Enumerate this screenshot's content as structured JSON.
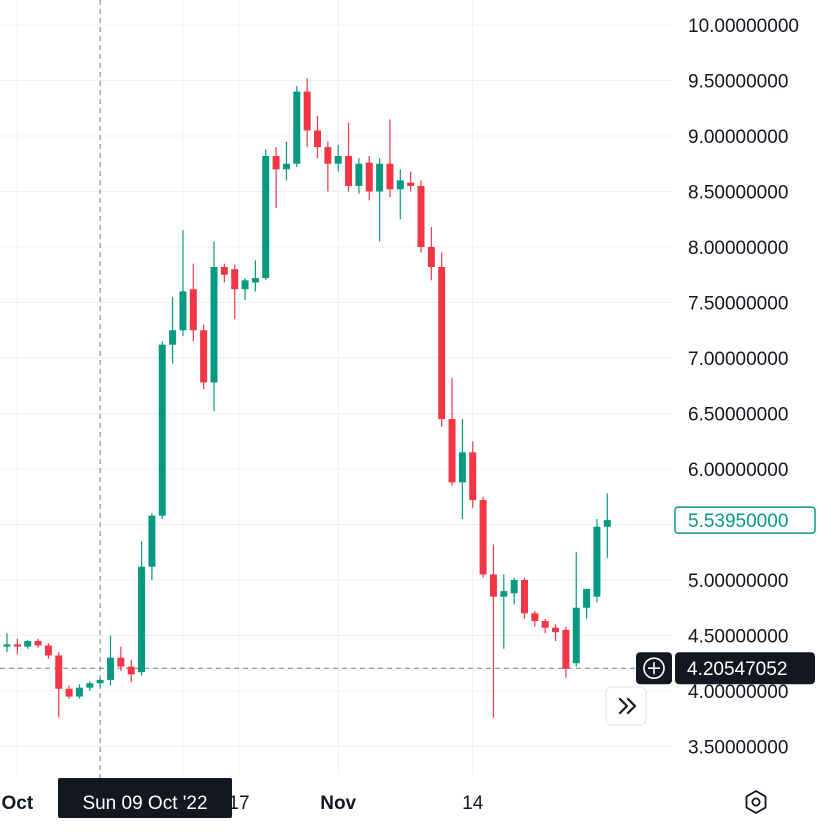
{
  "colors": {
    "up": "#089981",
    "down": "#f23645",
    "grid": "#eef0f3",
    "text": "#131722",
    "crosshair": "#787b86",
    "tooltip_bg": "#131722",
    "tooltip_text": "#ffffff"
  },
  "chart_data": {
    "type": "candlestick",
    "title": "",
    "ylim": [
      3.2,
      10.1
    ],
    "price_ticks": [
      "10.00000000",
      "9.50000000",
      "9.00000000",
      "8.50000000",
      "8.00000000",
      "7.50000000",
      "7.00000000",
      "6.50000000",
      "6.00000000",
      "5.00000000",
      "4.50000000",
      "4.00000000",
      "3.50000000"
    ],
    "time_labels": [
      "Oct",
      "17",
      "Nov",
      "14"
    ],
    "time_label_dates": [
      "Oct 1",
      "Oct 17",
      "Nov 1",
      "Nov 14"
    ],
    "candles": [
      {
        "date": "Sep 30",
        "o": 4.4,
        "h": 4.52,
        "l": 4.35,
        "c": 4.42
      },
      {
        "date": "Oct 1",
        "o": 4.42,
        "h": 4.47,
        "l": 4.33,
        "c": 4.4
      },
      {
        "date": "Oct 2",
        "o": 4.4,
        "h": 4.46,
        "l": 4.38,
        "c": 4.45
      },
      {
        "date": "Oct 3",
        "o": 4.45,
        "h": 4.47,
        "l": 4.39,
        "c": 4.41
      },
      {
        "date": "Oct 4",
        "o": 4.41,
        "h": 4.43,
        "l": 4.29,
        "c": 4.32
      },
      {
        "date": "Oct 5",
        "o": 4.32,
        "h": 4.35,
        "l": 3.76,
        "c": 4.02
      },
      {
        "date": "Oct 6",
        "o": 4.02,
        "h": 4.05,
        "l": 3.93,
        "c": 3.95
      },
      {
        "date": "Oct 7",
        "o": 3.95,
        "h": 4.06,
        "l": 3.93,
        "c": 4.03
      },
      {
        "date": "Oct 8",
        "o": 4.03,
        "h": 4.09,
        "l": 4.0,
        "c": 4.07
      },
      {
        "date": "Oct 9",
        "o": 4.07,
        "h": 4.12,
        "l": 4.03,
        "c": 4.1
      },
      {
        "date": "Oct 10",
        "o": 4.1,
        "h": 4.5,
        "l": 4.05,
        "c": 4.3
      },
      {
        "date": "Oct 11",
        "o": 4.3,
        "h": 4.4,
        "l": 4.18,
        "c": 4.22
      },
      {
        "date": "Oct 12",
        "o": 4.22,
        "h": 4.28,
        "l": 4.08,
        "c": 4.15
      },
      {
        "date": "Oct 13",
        "o": 4.17,
        "h": 5.35,
        "l": 4.14,
        "c": 5.12
      },
      {
        "date": "Oct 14",
        "o": 5.12,
        "h": 5.6,
        "l": 5.0,
        "c": 5.58
      },
      {
        "date": "Oct 15",
        "o": 5.58,
        "h": 7.15,
        "l": 5.55,
        "c": 7.12
      },
      {
        "date": "Oct 16",
        "o": 7.12,
        "h": 7.55,
        "l": 6.95,
        "c": 7.25
      },
      {
        "date": "Oct 17",
        "o": 7.25,
        "h": 8.15,
        "l": 7.2,
        "c": 7.6
      },
      {
        "date": "Oct 18",
        "o": 7.62,
        "h": 7.85,
        "l": 7.15,
        "c": 7.25
      },
      {
        "date": "Oct 19",
        "o": 7.25,
        "h": 7.3,
        "l": 6.72,
        "c": 6.78
      },
      {
        "date": "Oct 20",
        "o": 6.78,
        "h": 8.05,
        "l": 6.52,
        "c": 7.82
      },
      {
        "date": "Oct 21",
        "o": 7.82,
        "h": 7.85,
        "l": 7.68,
        "c": 7.75
      },
      {
        "date": "Oct 22",
        "o": 7.8,
        "h": 7.84,
        "l": 7.35,
        "c": 7.62
      },
      {
        "date": "Oct 23",
        "o": 7.62,
        "h": 7.72,
        "l": 7.52,
        "c": 7.7
      },
      {
        "date": "Oct 24",
        "o": 7.68,
        "h": 7.88,
        "l": 7.6,
        "c": 7.72
      },
      {
        "date": "Oct 25",
        "o": 7.72,
        "h": 8.88,
        "l": 7.7,
        "c": 8.82
      },
      {
        "date": "Oct 26",
        "o": 8.82,
        "h": 8.9,
        "l": 8.35,
        "c": 8.7
      },
      {
        "date": "Oct 27",
        "o": 8.7,
        "h": 8.95,
        "l": 8.6,
        "c": 8.75
      },
      {
        "date": "Oct 28",
        "o": 8.75,
        "h": 9.45,
        "l": 8.72,
        "c": 9.4
      },
      {
        "date": "Oct 29",
        "o": 9.4,
        "h": 9.52,
        "l": 8.9,
        "c": 9.05
      },
      {
        "date": "Oct 30",
        "o": 9.05,
        "h": 9.18,
        "l": 8.8,
        "c": 8.9
      },
      {
        "date": "Oct 31",
        "o": 8.9,
        "h": 8.95,
        "l": 8.5,
        "c": 8.75
      },
      {
        "date": "Nov 1",
        "o": 8.75,
        "h": 8.92,
        "l": 8.68,
        "c": 8.82
      },
      {
        "date": "Nov 2",
        "o": 8.82,
        "h": 9.12,
        "l": 8.5,
        "c": 8.55
      },
      {
        "date": "Nov 3",
        "o": 8.55,
        "h": 8.8,
        "l": 8.48,
        "c": 8.75
      },
      {
        "date": "Nov 4",
        "o": 8.76,
        "h": 8.82,
        "l": 8.42,
        "c": 8.5
      },
      {
        "date": "Nov 5",
        "o": 8.5,
        "h": 8.8,
        "l": 8.05,
        "c": 8.75
      },
      {
        "date": "Nov 6",
        "o": 8.75,
        "h": 9.15,
        "l": 8.45,
        "c": 8.52
      },
      {
        "date": "Nov 7",
        "o": 8.52,
        "h": 8.7,
        "l": 8.25,
        "c": 8.6
      },
      {
        "date": "Nov 8",
        "o": 8.58,
        "h": 8.68,
        "l": 8.5,
        "c": 8.55
      },
      {
        "date": "Nov 9",
        "o": 8.55,
        "h": 8.6,
        "l": 7.95,
        "c": 8.0
      },
      {
        "date": "Nov 10",
        "o": 8.0,
        "h": 8.18,
        "l": 7.7,
        "c": 7.82
      },
      {
        "date": "Nov 11",
        "o": 7.82,
        "h": 7.95,
        "l": 6.38,
        "c": 6.45
      },
      {
        "date": "Nov 12",
        "o": 6.45,
        "h": 6.82,
        "l": 5.85,
        "c": 5.88
      },
      {
        "date": "Nov 13",
        "o": 5.88,
        "h": 6.45,
        "l": 5.55,
        "c": 6.15
      },
      {
        "date": "Nov 14",
        "o": 6.15,
        "h": 6.25,
        "l": 5.65,
        "c": 5.72
      },
      {
        "date": "Nov 15",
        "o": 5.72,
        "h": 5.75,
        "l": 5.02,
        "c": 5.05
      },
      {
        "date": "Nov 16",
        "o": 5.05,
        "h": 5.32,
        "l": 3.76,
        "c": 4.85
      },
      {
        "date": "Nov 17",
        "o": 4.85,
        "h": 5.05,
        "l": 4.38,
        "c": 4.9
      },
      {
        "date": "Nov 18",
        "o": 4.88,
        "h": 5.02,
        "l": 4.78,
        "c": 5.0
      },
      {
        "date": "Nov 19",
        "o": 5.0,
        "h": 5.02,
        "l": 4.65,
        "c": 4.7
      },
      {
        "date": "Nov 20",
        "o": 4.7,
        "h": 4.72,
        "l": 4.58,
        "c": 4.63
      },
      {
        "date": "Nov 21",
        "o": 4.63,
        "h": 4.65,
        "l": 4.52,
        "c": 4.57
      },
      {
        "date": "Nov 22",
        "o": 4.57,
        "h": 4.6,
        "l": 4.45,
        "c": 4.53
      },
      {
        "date": "Nov 23",
        "o": 4.55,
        "h": 4.58,
        "l": 4.12,
        "c": 4.2
      },
      {
        "date": "Nov 24",
        "o": 4.25,
        "h": 5.25,
        "l": 4.22,
        "c": 4.75
      },
      {
        "date": "Nov 25",
        "o": 4.75,
        "h": 4.92,
        "l": 4.65,
        "c": 4.92
      },
      {
        "date": "Nov 26",
        "o": 4.85,
        "h": 5.55,
        "l": 4.8,
        "c": 5.48
      },
      {
        "date": "Nov 27",
        "o": 5.48,
        "h": 5.78,
        "l": 5.2,
        "c": 5.5395
      }
    ]
  },
  "last_price": {
    "label": "5.53950000",
    "value": 5.5395
  },
  "crosshair": {
    "price_label": "4.20547052",
    "price_value": 4.20547052,
    "date_label": "Sun 09 Oct '22",
    "date": "Oct 9"
  },
  "icons": {
    "scroll_right": "double-chevron-right-icon",
    "settings": "hexagon-gear-icon",
    "add": "plus-circle-icon"
  }
}
